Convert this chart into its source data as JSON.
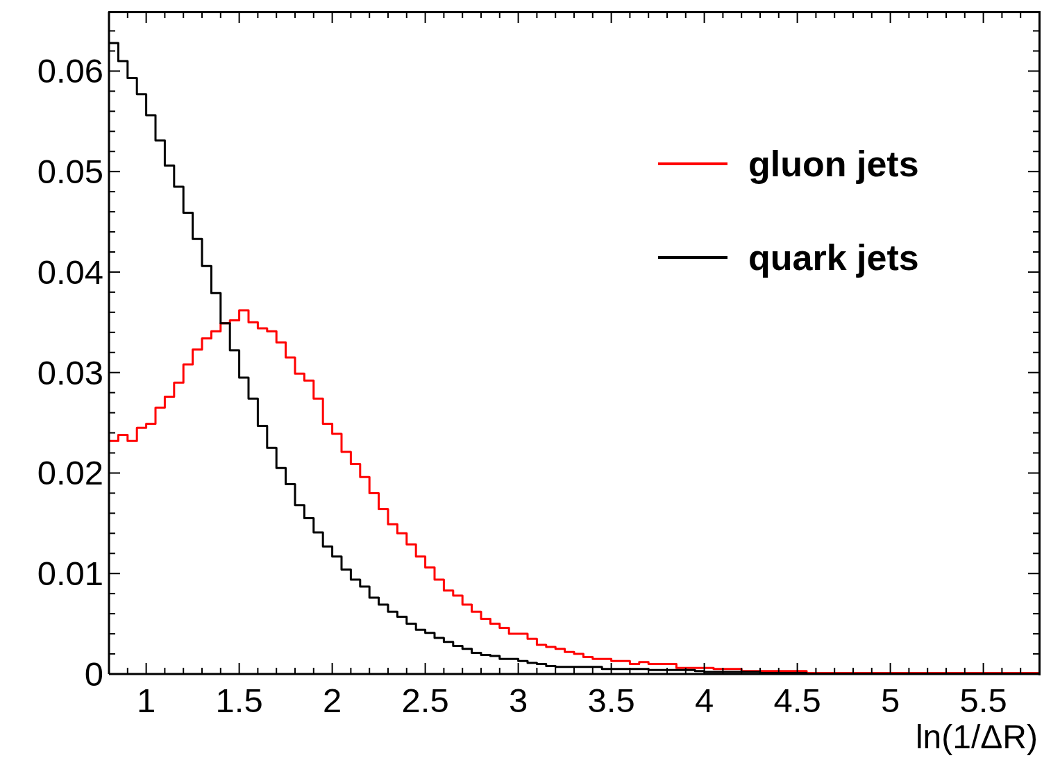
{
  "chart_data": {
    "type": "histogram",
    "xlabel": "ln(1/ΔR)",
    "bins": [
      0.8,
      0.85,
      0.9,
      0.95,
      1,
      1.05,
      1.1,
      1.15,
      1.2,
      1.25,
      1.3,
      1.35,
      1.4,
      1.45,
      1.5,
      1.55,
      1.6,
      1.65,
      1.7,
      1.75,
      1.8,
      1.85,
      1.9,
      1.95,
      2,
      2.05,
      2.1,
      2.15,
      2.2,
      2.25,
      2.3,
      2.35,
      2.4,
      2.45,
      2.5,
      2.55,
      2.6,
      2.65,
      2.7,
      2.75,
      2.8,
      2.85,
      2.9,
      2.95,
      3,
      3.05,
      3.1,
      3.15,
      3.2,
      3.25,
      3.3,
      3.35,
      3.4,
      3.45,
      3.5,
      3.55,
      3.6,
      3.65,
      3.7,
      3.75,
      3.8,
      3.85,
      3.9,
      3.95,
      4,
      4.05,
      4.1,
      4.15,
      4.2,
      4.25,
      4.3,
      4.35,
      4.4,
      4.45,
      4.5,
      4.55,
      4.6,
      4.65,
      4.7,
      4.75,
      4.8,
      4.85,
      4.9,
      4.95,
      5,
      5.05,
      5.1,
      5.15,
      5.2,
      5.25,
      5.3,
      5.35,
      5.4,
      5.45,
      5.5,
      5.55,
      5.6,
      5.65,
      5.7,
      5.75,
      5.8
    ],
    "series": [
      {
        "name": "gluon jets",
        "color": "#ff0000",
        "values": [
          0.0232,
          0.0238,
          0.0232,
          0.0245,
          0.0249,
          0.0265,
          0.0276,
          0.029,
          0.0308,
          0.0323,
          0.0334,
          0.0341,
          0.0349,
          0.0352,
          0.0362,
          0.035,
          0.0344,
          0.0341,
          0.033,
          0.0315,
          0.0299,
          0.0292,
          0.0274,
          0.0249,
          0.0239,
          0.0221,
          0.0209,
          0.0196,
          0.018,
          0.0164,
          0.0149,
          0.014,
          0.0129,
          0.0117,
          0.0106,
          0.0094,
          0.0083,
          0.0078,
          0.0069,
          0.0062,
          0.0055,
          0.005,
          0.0046,
          0.004,
          0.004,
          0.0035,
          0.0029,
          0.0027,
          0.0025,
          0.0022,
          0.002,
          0.0017,
          0.0015,
          0.0015,
          0.0013,
          0.0013,
          0.001,
          0.0012,
          0.001,
          0.001,
          0.001,
          0.0006,
          0.0006,
          0.0006,
          0.0006,
          0.0005,
          0.0005,
          0.0005,
          0.0003,
          0.0003,
          0.0003,
          0.0003,
          0.0003,
          0.0003,
          0.0003,
          0.0001,
          0.0001,
          0.0001,
          0.0001,
          0.0001,
          0.0001,
          0.0001,
          0.0001,
          0.0001,
          0.0001,
          0.0001,
          0.0001,
          0.0001,
          0.0001,
          0.0001,
          0.0001,
          0.0001,
          0.0001,
          0.0001,
          0.0001,
          0.0001,
          0.0001,
          0.0001,
          0.0001,
          0.0001
        ]
      },
      {
        "name": "quark jets",
        "color": "#000000",
        "values": [
          0.0628,
          0.061,
          0.0593,
          0.0577,
          0.0556,
          0.0531,
          0.0506,
          0.0485,
          0.0459,
          0.0433,
          0.0406,
          0.0379,
          0.0349,
          0.0322,
          0.0295,
          0.0274,
          0.0247,
          0.0225,
          0.0205,
          0.0189,
          0.0168,
          0.0155,
          0.0141,
          0.0127,
          0.0117,
          0.0104,
          0.0094,
          0.0087,
          0.0076,
          0.0069,
          0.0062,
          0.0057,
          0.005,
          0.0044,
          0.0041,
          0.0036,
          0.0032,
          0.0028,
          0.0025,
          0.0021,
          0.0019,
          0.0018,
          0.0015,
          0.0015,
          0.0013,
          0.0011,
          0.001,
          0.0008,
          0.0007,
          0.0007,
          0.0007,
          0.0007,
          0.0007,
          0.0005,
          0.0005,
          0.0005,
          0.0005,
          0.0005,
          0.0004,
          0.0004,
          0.0004,
          0.0004,
          0.0004,
          0.0003,
          0.0002,
          0.0002,
          0.0002,
          0.0002,
          0.0002,
          0.0002,
          0.0001,
          0.0001,
          0.0001,
          0.0001,
          0.0001,
          0,
          0,
          0,
          0,
          0,
          0,
          0,
          0,
          0,
          0,
          0,
          0,
          0,
          0,
          0,
          0,
          0,
          0,
          0,
          0,
          0,
          0,
          0,
          0,
          0
        ]
      }
    ],
    "xlim": [
      0.8,
      5.8
    ],
    "xticks": [
      {
        "value": 0.9,
        "label": null
      },
      1,
      {
        "value": 1.1,
        "label": null
      },
      {
        "value": 1.2,
        "label": null
      },
      {
        "value": 1.3,
        "label": null
      },
      {
        "value": 1.4,
        "label": null
      },
      1.5,
      {
        "value": 1.6,
        "label": null
      },
      {
        "value": 1.7,
        "label": null
      },
      {
        "value": 1.8,
        "label": null
      },
      {
        "value": 1.9,
        "label": null
      },
      2,
      {
        "value": 2.1,
        "label": null
      },
      {
        "value": 2.2,
        "label": null
      },
      {
        "value": 2.3,
        "label": null
      },
      {
        "value": 2.4,
        "label": null
      },
      2.5,
      {
        "value": 2.6,
        "label": null
      },
      {
        "value": 2.7,
        "label": null
      },
      {
        "value": 2.8,
        "label": null
      },
      {
        "value": 2.9,
        "label": null
      },
      3,
      {
        "value": 3.1,
        "label": null
      },
      {
        "value": 3.2,
        "label": null
      },
      {
        "value": 3.3,
        "label": null
      },
      {
        "value": 3.4,
        "label": null
      },
      3.5,
      {
        "value": 3.6,
        "label": null
      },
      {
        "value": 3.7,
        "label": null
      },
      {
        "value": 3.8,
        "label": null
      },
      {
        "value": 3.9,
        "label": null
      },
      4,
      {
        "value": 4.1,
        "label": null
      },
      {
        "value": 4.2,
        "label": null
      },
      {
        "value": 4.3,
        "label": null
      },
      {
        "value": 4.4,
        "label": null
      },
      4.5,
      {
        "value": 4.6,
        "label": null
      },
      {
        "value": 4.7,
        "label": null
      },
      {
        "value": 4.8,
        "label": null
      },
      {
        "value": 4.9,
        "label": null
      },
      5,
      {
        "value": 5.1,
        "label": null
      },
      {
        "value": 5.2,
        "label": null
      },
      {
        "value": 5.3,
        "label": null
      },
      {
        "value": 5.4,
        "label": null
      },
      5.5,
      {
        "value": 5.6,
        "label": null
      },
      {
        "value": 5.7,
        "label": null
      }
    ],
    "ylim": [
      0,
      0.0659
    ],
    "yticks": [
      0,
      {
        "value": 0.002,
        "label": null
      },
      {
        "value": 0.004,
        "label": null
      },
      {
        "value": 0.006,
        "label": null
      },
      {
        "value": 0.008,
        "label": null
      },
      0.01,
      {
        "value": 0.012,
        "label": null
      },
      {
        "value": 0.014,
        "label": null
      },
      {
        "value": 0.016,
        "label": null
      },
      {
        "value": 0.018,
        "label": null
      },
      0.02,
      {
        "value": 0.022,
        "label": null
      },
      {
        "value": 0.024,
        "label": null
      },
      {
        "value": 0.026,
        "label": null
      },
      {
        "value": 0.028,
        "label": null
      },
      0.03,
      {
        "value": 0.032,
        "label": null
      },
      {
        "value": 0.034,
        "label": null
      },
      {
        "value": 0.036,
        "label": null
      },
      {
        "value": 0.038,
        "label": null
      },
      0.04,
      {
        "value": 0.042,
        "label": null
      },
      {
        "value": 0.044,
        "label": null
      },
      {
        "value": 0.046,
        "label": null
      },
      {
        "value": 0.048,
        "label": null
      },
      0.05,
      {
        "value": 0.052,
        "label": null
      },
      {
        "value": 0.054,
        "label": null
      },
      {
        "value": 0.056,
        "label": null
      },
      {
        "value": 0.058,
        "label": null
      },
      0.06,
      {
        "value": 0.062,
        "label": null
      },
      {
        "value": 0.064,
        "label": null
      }
    ],
    "legend": "top right"
  }
}
